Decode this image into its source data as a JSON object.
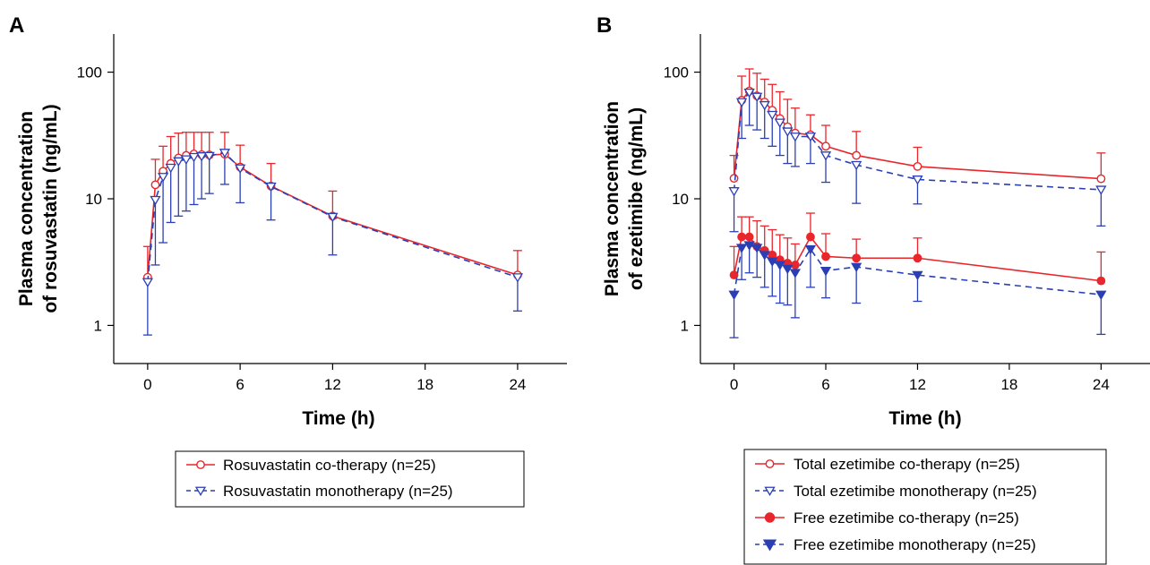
{
  "colors": {
    "red": "#e8262b",
    "blue": "#2b3fb5",
    "axis": "#000000"
  },
  "chart_data": [
    {
      "panel_label": "A",
      "type": "line",
      "y_scale": "log",
      "ylim": [
        0.5,
        200
      ],
      "xlim": [
        -2.2,
        27.2
      ],
      "y_ticks": [
        1,
        10,
        100
      ],
      "y_tick_labels": [
        "1",
        "10",
        "100"
      ],
      "x_ticks": [
        0,
        6,
        12,
        18,
        24
      ],
      "x_tick_labels": [
        "0",
        "6",
        "12",
        "18",
        "24"
      ],
      "xlabel": "Time (h)",
      "ylabel_lines": [
        "Plasma concentration",
        "of rosuvastatin (ng/mL)"
      ],
      "legend_position": "bottom",
      "series": [
        {
          "name": "Rosuvastatin co-therapy (n=25)",
          "color_key": "red",
          "line": "solid",
          "marker": "open-circle",
          "x": [
            0,
            0.5,
            1,
            1.5,
            2,
            2.5,
            3,
            3.5,
            4,
            5,
            6,
            8,
            12,
            24
          ],
          "y": [
            2.4,
            12.9,
            16.5,
            19.0,
            21.0,
            22.0,
            22.6,
            22.3,
            22.2,
            22.5,
            17.8,
            12.6,
            7.3,
            2.5
          ],
          "err_hi": [
            4.2,
            20.5,
            26,
            31,
            33,
            33.5,
            33.5,
            33.5,
            33.5,
            33.5,
            26.5,
            19.0,
            11.5,
            3.9
          ]
        },
        {
          "name": "Rosuvastatin monotherapy (n=25)",
          "color_key": "blue",
          "line": "dashed",
          "marker": "open-triangle-down",
          "x": [
            0,
            0.5,
            1,
            1.5,
            2,
            2.5,
            3,
            3.5,
            4,
            5,
            6,
            8,
            12,
            24
          ],
          "y": [
            2.2,
            9.8,
            14.9,
            17.6,
            19.8,
            20.5,
            21.4,
            21.7,
            21.8,
            23.1,
            17.4,
            12.5,
            7.2,
            2.4
          ],
          "err_lo": [
            0.84,
            3.0,
            4.5,
            6.5,
            7.3,
            8.0,
            9.0,
            10.0,
            11.0,
            13.0,
            9.3,
            6.8,
            3.6,
            1.3
          ]
        }
      ]
    },
    {
      "panel_label": "B",
      "type": "line",
      "y_scale": "log",
      "ylim": [
        0.5,
        200
      ],
      "xlim": [
        -2.2,
        27.2
      ],
      "y_ticks": [
        1,
        10,
        100
      ],
      "y_tick_labels": [
        "1",
        "10",
        "100"
      ],
      "x_ticks": [
        0,
        6,
        12,
        18,
        24
      ],
      "x_tick_labels": [
        "0",
        "6",
        "12",
        "18",
        "24"
      ],
      "xlabel": "Time (h)",
      "ylabel_lines": [
        "Plasma concentration",
        "of ezetimibe (ng/mL)"
      ],
      "legend_position": "bottom",
      "series": [
        {
          "name": "Total ezetimibe co-therapy (n=25)",
          "color_key": "red",
          "line": "solid",
          "marker": "open-circle",
          "x": [
            0,
            0.5,
            1,
            1.5,
            2,
            2.5,
            3,
            3.5,
            4,
            5,
            6,
            8,
            12,
            24
          ],
          "y": [
            14.5,
            60,
            71,
            65,
            58,
            50,
            43,
            37,
            33,
            32,
            26,
            22,
            18,
            14.4
          ],
          "err_hi": [
            22,
            93,
            106,
            98,
            88,
            80,
            70,
            61,
            52,
            46,
            38,
            34,
            25.5,
            23
          ]
        },
        {
          "name": "Total ezetimibe monotherapy (n=25)",
          "color_key": "blue",
          "line": "dashed",
          "marker": "open-triangle-down",
          "x": [
            0,
            0.5,
            1,
            1.5,
            2,
            2.5,
            3,
            3.5,
            4,
            5,
            6,
            8,
            12,
            24
          ],
          "y": [
            11.5,
            58,
            69,
            64,
            55,
            46,
            40,
            34,
            31,
            31,
            22,
            18.5,
            14.2,
            11.8
          ],
          "err_lo": [
            5.5,
            30,
            38,
            35,
            30,
            26,
            22,
            19,
            18,
            19,
            13.5,
            9.2,
            9.1,
            6.1
          ]
        },
        {
          "name": "Free ezetimibe co-therapy (n=25)",
          "color_key": "red",
          "line": "solid",
          "marker": "filled-circle",
          "x": [
            0,
            0.5,
            1,
            1.5,
            2,
            2.5,
            3,
            3.5,
            4,
            5,
            6,
            8,
            12,
            24
          ],
          "y": [
            2.5,
            5.0,
            5.0,
            4.2,
            3.9,
            3.6,
            3.3,
            3.1,
            3.0,
            5.0,
            3.5,
            3.4,
            3.4,
            2.25
          ],
          "err_hi": [
            4.2,
            7.2,
            7.2,
            6.7,
            6.1,
            5.7,
            5.2,
            4.9,
            4.4,
            7.7,
            5.3,
            4.8,
            4.9,
            3.8
          ]
        },
        {
          "name": "Free ezetimibe monotherapy (n=25)",
          "color_key": "blue",
          "line": "dashed",
          "marker": "filled-triangle-down",
          "x": [
            0,
            0.5,
            1,
            1.5,
            2,
            2.5,
            3,
            3.5,
            4,
            5,
            6,
            8,
            12,
            24
          ],
          "y": [
            1.75,
            4.1,
            4.3,
            4.1,
            3.6,
            3.2,
            3.0,
            2.8,
            2.6,
            4.0,
            2.7,
            2.9,
            2.5,
            1.75
          ],
          "err_lo": [
            0.8,
            2.3,
            2.6,
            2.4,
            2.0,
            1.7,
            1.5,
            1.45,
            1.15,
            2.0,
            1.65,
            1.5,
            1.55,
            0.85
          ]
        }
      ]
    }
  ]
}
